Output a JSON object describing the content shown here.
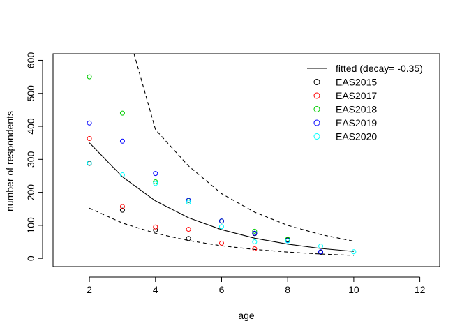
{
  "chart_data": {
    "type": "scatter",
    "title": "",
    "xlabel": "age",
    "ylabel": "number of respondents",
    "xlim": [
      0.9,
      12.6
    ],
    "ylim": [
      -25,
      620
    ],
    "x_ticks": [
      2,
      4,
      6,
      8,
      10,
      12
    ],
    "y_ticks": [
      0,
      100,
      200,
      300,
      400,
      500,
      600
    ],
    "grid": false,
    "legend_position": "top-right",
    "series": [
      {
        "name": "EAS2015",
        "color": "#000000",
        "marker": "circle",
        "x": [
          2,
          3,
          4,
          5,
          6,
          7,
          8,
          9
        ],
        "y": [
          288,
          146,
          86,
          60,
          113,
          75,
          56,
          18
        ]
      },
      {
        "name": "EAS2017",
        "color": "#ff0000",
        "marker": "circle",
        "x": [
          2,
          3,
          4,
          5,
          6,
          7
        ],
        "y": [
          363,
          157,
          95,
          88,
          46,
          29
        ]
      },
      {
        "name": "EAS2018",
        "color": "#00cd00",
        "marker": "circle",
        "x": [
          2,
          3,
          4,
          5,
          6,
          7,
          8
        ],
        "y": [
          550,
          440,
          232,
          175,
          113,
          82,
          58
        ]
      },
      {
        "name": "EAS2019",
        "color": "#0000ff",
        "marker": "circle",
        "x": [
          2,
          3,
          4,
          5,
          6,
          7,
          8,
          9
        ],
        "y": [
          410,
          355,
          257,
          176,
          113,
          76,
          54,
          20
        ]
      },
      {
        "name": "EAS2020",
        "color": "#00ffff",
        "marker": "circle",
        "x": [
          2,
          3,
          4,
          5,
          6,
          7,
          8,
          9,
          10
        ],
        "y": [
          289,
          253,
          227,
          170,
          96,
          50,
          53,
          37,
          20
        ]
      }
    ],
    "fitted": {
      "name": "fitted (decay= -0.35)",
      "color": "#000000",
      "x": [
        2,
        3,
        4,
        5,
        6,
        7,
        8,
        9,
        10
      ],
      "y": [
        350,
        247,
        174,
        123,
        87,
        61,
        43,
        30,
        21
      ]
    },
    "upper_band": {
      "color": "#000000",
      "x": [
        3.35,
        4,
        5,
        6,
        7,
        8,
        9,
        10
      ],
      "y": [
        620,
        390,
        280,
        196,
        140,
        100,
        72,
        52
      ]
    },
    "lower_band": {
      "color": "#000000",
      "x": [
        2,
        3,
        4,
        5,
        6,
        7,
        8,
        9,
        10
      ],
      "y": [
        152,
        107,
        76,
        54,
        38,
        27,
        19,
        13,
        9
      ]
    }
  }
}
